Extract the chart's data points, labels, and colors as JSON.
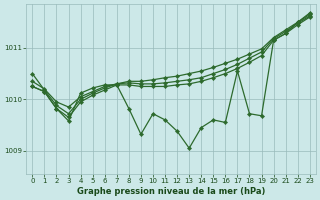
{
  "xlabel": "Graphe pression niveau de la mer (hPa)",
  "plot_bg_color": "#cce8e8",
  "line_color": "#2d6a2d",
  "grid_color": "#99bbbb",
  "text_color": "#1a4a1a",
  "xlim": [
    -0.5,
    23.5
  ],
  "ylim": [
    1008.55,
    1011.85
  ],
  "yticks": [
    1009,
    1010,
    1011
  ],
  "xticks": [
    0,
    1,
    2,
    3,
    4,
    5,
    6,
    7,
    8,
    9,
    10,
    11,
    12,
    13,
    14,
    15,
    16,
    17,
    18,
    19,
    20,
    21,
    22,
    23
  ],
  "series": [
    {
      "x": [
        0,
        1,
        2,
        3,
        4,
        5,
        6,
        7,
        8,
        9,
        10,
        11,
        12,
        13,
        14,
        15,
        16,
        17,
        18,
        19,
        20,
        21,
        22,
        23
      ],
      "y": [
        1010.35,
        1010.2,
        1009.95,
        1009.85,
        1010.05,
        1010.15,
        1010.25,
        1010.3,
        1010.35,
        1010.35,
        1010.38,
        1010.42,
        1010.45,
        1010.5,
        1010.55,
        1010.62,
        1010.7,
        1010.78,
        1010.88,
        1010.98,
        1011.2,
        1011.35,
        1011.5,
        1011.65
      ]
    },
    {
      "x": [
        0,
        1,
        2,
        3,
        4,
        5,
        6,
        7,
        8,
        9,
        10,
        11,
        12,
        13,
        14,
        15,
        16,
        17,
        18,
        19,
        20,
        21,
        22,
        23
      ],
      "y": [
        1010.5,
        1010.18,
        1009.88,
        1009.72,
        1010.0,
        1010.12,
        1010.22,
        1010.3,
        1010.32,
        1010.3,
        1010.3,
        1010.32,
        1010.35,
        1010.38,
        1010.42,
        1010.5,
        1010.58,
        1010.68,
        1010.8,
        1010.92,
        1011.18,
        1011.32,
        1011.48,
        1011.62
      ]
    },
    {
      "x": [
        0,
        1,
        2,
        3,
        4,
        5,
        6,
        7,
        8,
        9,
        10,
        11,
        12,
        13,
        14,
        15,
        16,
        17,
        18,
        19,
        20,
        21,
        22,
        23
      ],
      "y": [
        1010.25,
        1010.15,
        1009.82,
        1009.65,
        1009.95,
        1010.08,
        1010.18,
        1010.28,
        1010.28,
        1010.25,
        1010.25,
        1010.25,
        1010.28,
        1010.3,
        1010.35,
        1010.42,
        1010.5,
        1010.6,
        1010.72,
        1010.85,
        1011.15,
        1011.28,
        1011.45,
        1011.6
      ]
    },
    {
      "x": [
        0,
        1,
        2,
        3,
        4,
        5,
        6,
        7,
        8,
        9,
        10,
        11,
        12,
        13,
        14,
        15,
        16,
        17,
        18,
        19,
        20,
        21,
        22,
        23
      ],
      "y": [
        1010.25,
        1010.15,
        1009.82,
        1009.58,
        1010.12,
        1010.22,
        1010.28,
        1010.28,
        1009.82,
        1009.32,
        1009.72,
        1009.6,
        1009.38,
        1009.05,
        1009.45,
        1009.6,
        1009.55,
        1010.55,
        1009.72,
        1009.68,
        1011.15,
        1011.28,
        1011.5,
        1011.68
      ]
    }
  ]
}
